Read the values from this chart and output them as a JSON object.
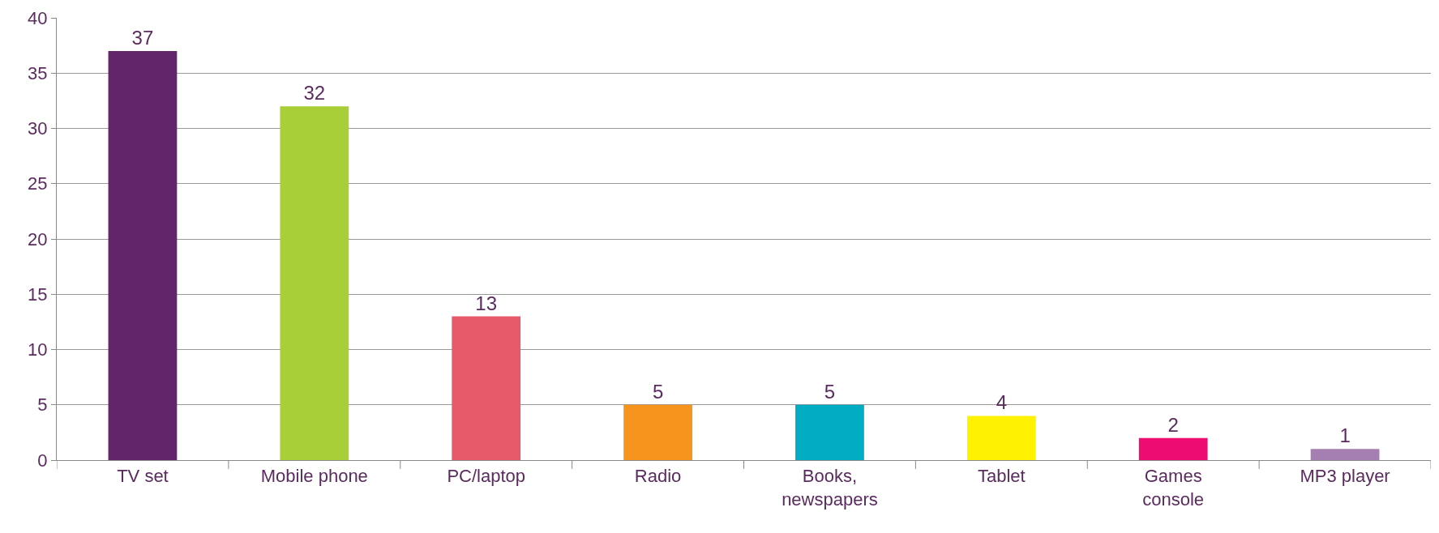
{
  "chart_data": {
    "type": "bar",
    "categories": [
      "TV set",
      "Mobile phone",
      "PC/laptop",
      "Radio",
      "Books,\nnewspapers",
      "Tablet",
      "Games\nconsole",
      "MP3 player"
    ],
    "values": [
      37,
      32,
      13,
      5,
      5,
      4,
      2,
      1
    ],
    "colors": [
      "#62256a",
      "#a8cf38",
      "#e65a6a",
      "#f7941d",
      "#00acc1",
      "#fff200",
      "#ec0c72",
      "#a57fb2"
    ],
    "ylim": [
      0,
      40
    ],
    "yticks": [
      0,
      5,
      10,
      15,
      20,
      25,
      30,
      35,
      40
    ],
    "grid": "y",
    "data_labels": true
  }
}
